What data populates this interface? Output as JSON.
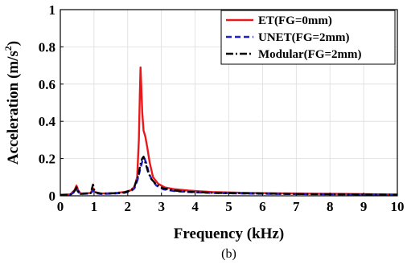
{
  "chart_data": {
    "type": "line",
    "xlabel": "Frequency (kHz)",
    "ylabel_main": "Acceleration (m/s",
    "ylabel_sup": "2",
    "ylabel_end": ")",
    "xlim": [
      0,
      10
    ],
    "ylim": [
      0,
      1
    ],
    "xticks": [
      0,
      1,
      2,
      3,
      4,
      5,
      6,
      7,
      8,
      9,
      10
    ],
    "yticks": [
      0,
      0.2,
      0.4,
      0.6,
      0.8,
      1
    ],
    "ytick_labels": [
      "0",
      "0.2",
      "0.4",
      "0.6",
      "0.8",
      "1"
    ],
    "grid": true,
    "legend_position": "top-right",
    "subfigure_label": "(b)",
    "series": [
      {
        "name": "ET(FG=0mm)",
        "color": "#e8191b",
        "dash": "solid",
        "points": [
          [
            0,
            0.005
          ],
          [
            0.3,
            0.008
          ],
          [
            0.42,
            0.03
          ],
          [
            0.48,
            0.055
          ],
          [
            0.53,
            0.03
          ],
          [
            0.6,
            0.012
          ],
          [
            0.9,
            0.015
          ],
          [
            0.97,
            0.04
          ],
          [
            1.02,
            0.02
          ],
          [
            1.2,
            0.012
          ],
          [
            1.6,
            0.015
          ],
          [
            1.9,
            0.02
          ],
          [
            2.1,
            0.03
          ],
          [
            2.2,
            0.05
          ],
          [
            2.28,
            0.1
          ],
          [
            2.33,
            0.3
          ],
          [
            2.36,
            0.55
          ],
          [
            2.38,
            0.69
          ],
          [
            2.4,
            0.6
          ],
          [
            2.43,
            0.45
          ],
          [
            2.47,
            0.35
          ],
          [
            2.52,
            0.32
          ],
          [
            2.58,
            0.26
          ],
          [
            2.65,
            0.18
          ],
          [
            2.75,
            0.1
          ],
          [
            2.9,
            0.065
          ],
          [
            3.1,
            0.045
          ],
          [
            3.4,
            0.035
          ],
          [
            3.8,
            0.028
          ],
          [
            4.5,
            0.02
          ],
          [
            5.5,
            0.016
          ],
          [
            6.5,
            0.013
          ],
          [
            7.5,
            0.011
          ],
          [
            8.5,
            0.01
          ],
          [
            9.5,
            0.008
          ],
          [
            10,
            0.007
          ]
        ]
      },
      {
        "name": "UNET(FG=2mm)",
        "color": "#1f1fd1",
        "dash": "dashed",
        "points": [
          [
            0,
            0.004
          ],
          [
            0.3,
            0.006
          ],
          [
            0.42,
            0.02
          ],
          [
            0.48,
            0.035
          ],
          [
            0.53,
            0.02
          ],
          [
            0.6,
            0.01
          ],
          [
            0.9,
            0.012
          ],
          [
            0.97,
            0.03
          ],
          [
            1.02,
            0.015
          ],
          [
            1.2,
            0.01
          ],
          [
            1.6,
            0.012
          ],
          [
            1.9,
            0.016
          ],
          [
            2.1,
            0.025
          ],
          [
            2.2,
            0.04
          ],
          [
            2.3,
            0.09
          ],
          [
            2.38,
            0.15
          ],
          [
            2.44,
            0.19
          ],
          [
            2.5,
            0.2
          ],
          [
            2.56,
            0.17
          ],
          [
            2.63,
            0.12
          ],
          [
            2.72,
            0.085
          ],
          [
            2.85,
            0.055
          ],
          [
            3.05,
            0.035
          ],
          [
            3.4,
            0.025
          ],
          [
            3.8,
            0.02
          ],
          [
            4.5,
            0.015
          ],
          [
            5.5,
            0.012
          ],
          [
            6.5,
            0.01
          ],
          [
            7.5,
            0.009
          ],
          [
            8.5,
            0.008
          ],
          [
            9.5,
            0.006
          ],
          [
            10,
            0.005
          ]
        ]
      },
      {
        "name": "Modular(FG=2mm)",
        "color": "#000000",
        "dash": "dashdot",
        "points": [
          [
            0,
            0.004
          ],
          [
            0.3,
            0.006
          ],
          [
            0.42,
            0.025
          ],
          [
            0.48,
            0.045
          ],
          [
            0.53,
            0.025
          ],
          [
            0.6,
            0.01
          ],
          [
            0.9,
            0.014
          ],
          [
            0.97,
            0.06
          ],
          [
            1.02,
            0.02
          ],
          [
            1.2,
            0.012
          ],
          [
            1.6,
            0.013
          ],
          [
            1.9,
            0.018
          ],
          [
            2.1,
            0.03
          ],
          [
            2.2,
            0.05
          ],
          [
            2.3,
            0.1
          ],
          [
            2.38,
            0.17
          ],
          [
            2.43,
            0.2
          ],
          [
            2.47,
            0.21
          ],
          [
            2.52,
            0.18
          ],
          [
            2.6,
            0.13
          ],
          [
            2.7,
            0.09
          ],
          [
            2.85,
            0.06
          ],
          [
            3.05,
            0.04
          ],
          [
            3.4,
            0.028
          ],
          [
            3.8,
            0.022
          ],
          [
            4.5,
            0.016
          ],
          [
            5.5,
            0.013
          ],
          [
            6.5,
            0.011
          ],
          [
            7.5,
            0.009
          ],
          [
            8.5,
            0.008
          ],
          [
            9.5,
            0.006
          ],
          [
            10,
            0.005
          ]
        ]
      }
    ]
  }
}
